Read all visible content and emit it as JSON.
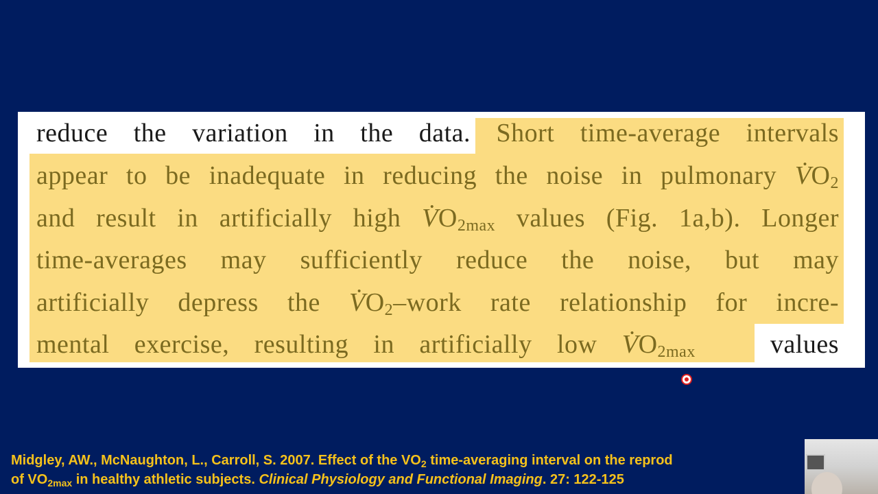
{
  "excerpt": {
    "l1_plain": "reduce the variation in the data.",
    "l1_hl": "Short time-average intervals",
    "l2": "appear to be inadequate in reducing the noise in pulmonary ",
    "l3a": "and result in artificially high ",
    "l3b": " values (Fig. 1a,b). Longer",
    "l4": "time-averages may sufficiently reduce the noise, but may",
    "l5a": "artificially depress the ",
    "l5b": "–work rate relationship for incre-",
    "l6a": "mental exercise, resulting in artificially low ",
    "l6b": "values",
    "v": "V̇",
    "o": "O",
    "sub2": "2",
    "sub2max": "2max"
  },
  "citation": {
    "l1a": "Midgley, AW., McNaughton, L., Carroll, S. 2007. Effect of the VO",
    "l1sub": "2",
    "l1b": " time-averaging interval on the reprod",
    "l2a": "of VO",
    "l2sub": "2max",
    "l2b": " in healthy athletic subjects. ",
    "journal": "Clinical Physiology and Functional Imaging",
    "l2c": ". 27: 122-125"
  },
  "colors": {
    "background": "#001c5f",
    "highlight": "#fbdc82",
    "citation": "#f6c21b"
  }
}
